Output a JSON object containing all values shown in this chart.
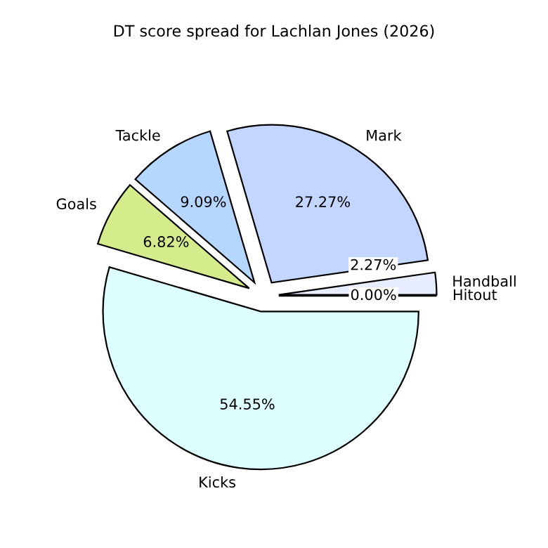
{
  "chart_data": {
    "type": "pie",
    "title": "DT score spread for Lachlan Jones (2026)",
    "categories": [
      "Hitout",
      "Handball",
      "Mark",
      "Tackle",
      "Goals",
      "Kicks"
    ],
    "values": [
      0.0,
      2.27,
      27.27,
      9.09,
      6.82,
      54.55
    ],
    "colors": [
      "#e0e8ff",
      "#e8eeff",
      "#c2d6ff",
      "#b4d6ff",
      "#d4ec8c",
      "#ddffff"
    ],
    "value_labels": [
      "0.00%",
      "2.27%",
      "27.27%",
      "9.09%",
      "6.82%",
      "54.55%"
    ]
  }
}
